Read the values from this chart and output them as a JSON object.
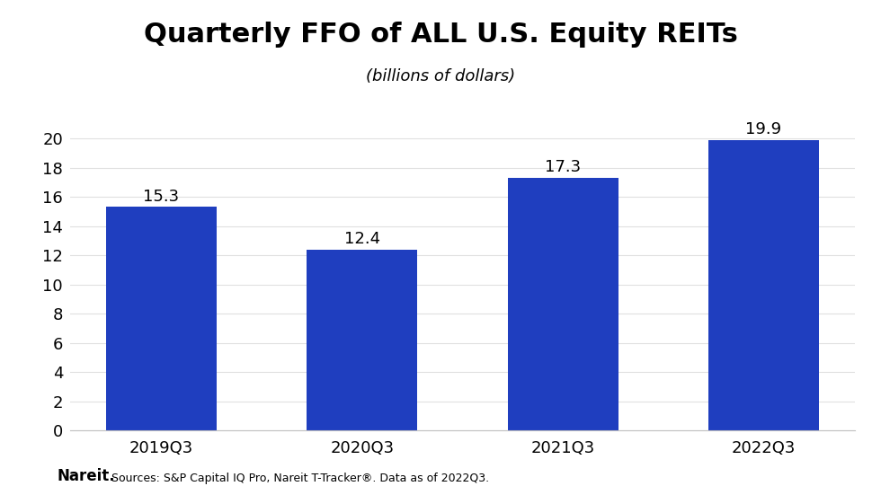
{
  "title": "Quarterly FFO of ALL U.S. Equity REITs",
  "subtitle": "(billions of dollars)",
  "categories": [
    "2019Q3",
    "2020Q3",
    "2021Q3",
    "2022Q3"
  ],
  "values": [
    15.3,
    12.4,
    17.3,
    19.9
  ],
  "bar_color": "#1f3ebf",
  "ylim": [
    0,
    21
  ],
  "yticks": [
    0,
    2,
    4,
    6,
    8,
    10,
    12,
    14,
    16,
    18,
    20
  ],
  "title_fontsize": 22,
  "subtitle_fontsize": 13,
  "tick_fontsize": 13,
  "bar_label_fontsize": 13,
  "background_color": "#ffffff",
  "footer_bold": "Nareit.",
  "footer_text": "Sources: S&P Capital IQ Pro, Nareit T-Tracker®. Data as of 2022Q3.",
  "footer_fontsize": 9,
  "footer_bold_fontsize": 12,
  "grid_color": "#e0e0e0",
  "bottom_spine_color": "#c0c0c0"
}
